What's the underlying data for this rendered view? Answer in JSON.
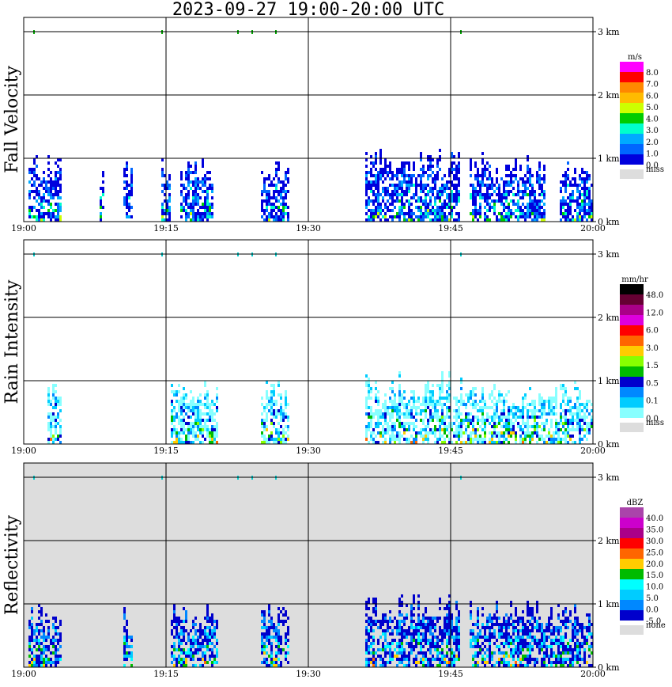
{
  "title": "2023-09-27  19:00-20:00 UTC",
  "x_ticks": [
    "19:00",
    "19:15",
    "19:30",
    "19:45",
    "20:00"
  ],
  "y_ticks": [
    "0 km",
    "1 km",
    "2 km",
    "3 km"
  ],
  "colors": {
    "missing_fill": "#dddddd",
    "grid": "#000000",
    "background": "#ffffff"
  },
  "chart_data": [
    {
      "type": "heatmap",
      "ylabel": "Fall Velocity",
      "xlim": [
        "19:00",
        "20:00"
      ],
      "ylim": [
        0,
        3.2
      ],
      "grid": true,
      "legend_placement": "right",
      "colorbar": {
        "unit": "m/s",
        "ticks": [
          "8.0",
          "7.0",
          "6.0",
          "5.0",
          "4.0",
          "3.0",
          "2.0",
          "1.0",
          "0.0"
        ],
        "colors": [
          "#ff00ff",
          "#ff0000",
          "#ff8800",
          "#ffbb00",
          "#ccff00",
          "#00cc00",
          "#00ffcc",
          "#00aaff",
          "#0066ff",
          "#0000dd"
        ],
        "missing_label": "miss"
      },
      "echo_bands": [
        {
          "t": [
            0.5,
            4.0
          ],
          "top": 1.05
        },
        {
          "t": [
            8.0,
            8.5
          ],
          "top": 0.9
        },
        {
          "t": [
            10.5,
            11.5
          ],
          "top": 1.0
        },
        {
          "t": [
            14.5,
            15.5
          ],
          "top": 1.0
        },
        {
          "t": [
            16.5,
            20.0
          ],
          "top": 1.0
        },
        {
          "t": [
            25.0,
            28.0
          ],
          "top": 1.05
        },
        {
          "t": [
            36.0,
            46.0
          ],
          "top": 1.15
        },
        {
          "t": [
            47.0,
            55.0
          ],
          "top": 1.1
        },
        {
          "t": [
            56.5,
            60.0
          ],
          "top": 0.95
        }
      ]
    },
    {
      "type": "heatmap",
      "ylabel": "Rain Intensity",
      "xlim": [
        "19:00",
        "20:00"
      ],
      "ylim": [
        0,
        3.2
      ],
      "grid": true,
      "legend_placement": "right",
      "colorbar": {
        "unit": "mm/hr",
        "ticks": [
          "48.0",
          "12.0",
          "6.0",
          "3.0",
          "1.5",
          "0.5",
          "0.1",
          "0.0"
        ],
        "colors": [
          "#000000",
          "#660033",
          "#aa0088",
          "#dd00dd",
          "#ff0000",
          "#ff6600",
          "#ffcc00",
          "#88ff00",
          "#00bb00",
          "#0000cc",
          "#0088ff",
          "#00ccff",
          "#88ffff"
        ],
        "missing_label": "miss"
      },
      "echo_bands": [
        {
          "t": [
            2.5,
            4.0
          ],
          "top": 1.0
        },
        {
          "t": [
            15.5,
            20.5
          ],
          "top": 1.0
        },
        {
          "t": [
            25.0,
            28.0
          ],
          "top": 1.0
        },
        {
          "t": [
            36.0,
            47.0
          ],
          "top": 1.15
        },
        {
          "t": [
            47.0,
            60.0
          ],
          "top": 1.0
        }
      ]
    },
    {
      "type": "heatmap",
      "ylabel": "Reflectivity",
      "xlim": [
        "19:00",
        "20:00"
      ],
      "ylim": [
        0,
        3.2
      ],
      "grid": true,
      "legend_placement": "right",
      "colorbar": {
        "unit": "dBZ",
        "ticks": [
          "40.0",
          "35.0",
          "30.0",
          "25.0",
          "20.0",
          "15.0",
          "10.0",
          "5.0",
          "0.0",
          "-5.0"
        ],
        "colors": [
          "#aa44aa",
          "#cc00cc",
          "#aa0088",
          "#ff0000",
          "#ff6600",
          "#ffcc00",
          "#00bb00",
          "#00ffff",
          "#00ccff",
          "#0088ff",
          "#0000cc"
        ],
        "missing_label": "none"
      },
      "echo_bands": [
        {
          "t": [
            0.5,
            4.0
          ],
          "top": 1.05
        },
        {
          "t": [
            10.5,
            11.5
          ],
          "top": 1.0
        },
        {
          "t": [
            15.5,
            20.5
          ],
          "top": 1.0
        },
        {
          "t": [
            25.0,
            28.0
          ],
          "top": 1.05
        },
        {
          "t": [
            36.0,
            46.0
          ],
          "top": 1.15
        },
        {
          "t": [
            47.0,
            60.0
          ],
          "top": 1.1
        }
      ]
    }
  ]
}
